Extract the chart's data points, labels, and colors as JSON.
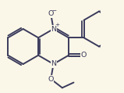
{
  "bg": "#fbf7e8",
  "lc": "#3a3a5c",
  "lw": 1.4,
  "fs": 6.8,
  "sfs": 5.2,
  "xlim": [
    -0.2,
    9.5
  ],
  "ylim": [
    -1.5,
    7.5
  ]
}
